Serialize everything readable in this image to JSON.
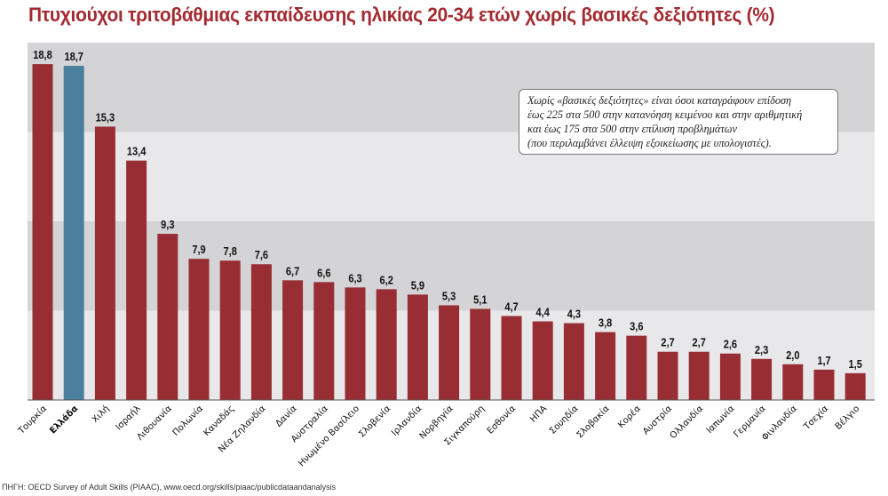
{
  "title": "Πτυχιούχοι τριτοβάθμιας εκπαίδευσης ηλικίας 20-34 ετών χωρίς βασικές δεξιότητες (%)",
  "note": [
    "Χωρίς «βασικές δεξιότητες» είναι όσοι καταγράφουν επίδοση",
    "έως 225 στα 500 στην κατανόηση κειμένου και στην αριθμητική",
    "και έως 175 στα 500 στην επίλυση προβλημάτων",
    "(που περιλαμβάνει έλλειψη εξοικείωσης με υπολογιστές)."
  ],
  "source": "ΠΗΓΗ: OECD Survey of Adult Skills (PIAAC), www.oecd.org/skills/piaac/publicdataandanalysis",
  "colors": {
    "bar": "#982d34",
    "highlight": "#4a809d",
    "title": "#a22b32",
    "band_dark": "#d4d4d6",
    "band_light": "#e8e8ea"
  },
  "chart_data": {
    "type": "bar",
    "title": "Πτυχιούχοι τριτοβάθμιας εκπαίδευσης ηλικίας 20-34 ετών χωρίς βασικές δεξιότητες (%)",
    "categories": [
      "Τουρκία",
      "Ελλάδα",
      "Χιλή",
      "Ισραήλ",
      "Λιθουανία",
      "Πολωνία",
      "Καναδάς",
      "Νέα Ζηλανδία",
      "Δανία",
      "Αυστραλία",
      "Ηνωμένο Βασίλειο",
      "Σλοβενία",
      "Ιρλανδία",
      "Νορβηγία",
      "Σιγκαπούρη",
      "Εσθονία",
      "ΗΠΑ",
      "Σουηδία",
      "Σλοβακία",
      "Κορέα",
      "Αυστρία",
      "Ολλανδία",
      "Ιαπωνία",
      "Γερμανία",
      "Φινλανδία",
      "Τσεχία",
      "Βέλγιο"
    ],
    "values": [
      18.8,
      18.7,
      15.3,
      13.4,
      9.3,
      7.9,
      7.8,
      7.6,
      6.7,
      6.6,
      6.3,
      6.2,
      5.9,
      5.3,
      5.1,
      4.7,
      4.4,
      4.3,
      3.8,
      3.6,
      2.7,
      2.7,
      2.6,
      2.3,
      2.0,
      1.7,
      1.5
    ],
    "value_labels": [
      "18,8",
      "18,7",
      "15,3",
      "13,4",
      "9,3",
      "7,9",
      "7,8",
      "7,6",
      "6,7",
      "6,6",
      "6,3",
      "6,2",
      "5,9",
      "5,3",
      "5,1",
      "4,7",
      "4,4",
      "4,3",
      "3,8",
      "3,6",
      "2,7",
      "2,7",
      "2,6",
      "2,3",
      "2,0",
      "1,7",
      "1,5"
    ],
    "highlight": "Ελλάδα",
    "ylim": [
      0,
      20
    ],
    "grid": "alternating horizontal bands every 5",
    "xlabel": "",
    "ylabel": ""
  }
}
